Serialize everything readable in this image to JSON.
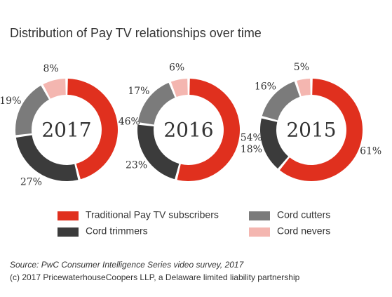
{
  "title": "Distribution of Pay TV relationships over time",
  "chart_data": [
    {
      "type": "donut",
      "center_label": "2017",
      "categories": [
        "Traditional Pay TV subscribers",
        "Cord trimmers",
        "Cord cutters",
        "Cord nevers"
      ],
      "colors": [
        "#e0301e",
        "#3b3b3b",
        "#7b7b7b",
        "#f4b6b0"
      ],
      "values": [
        46,
        27,
        19,
        8
      ],
      "value_labels": [
        "46%",
        "27%",
        "19%",
        "8%"
      ]
    },
    {
      "type": "donut",
      "center_label": "2016",
      "categories": [
        "Traditional Pay TV subscribers",
        "Cord trimmers",
        "Cord cutters",
        "Cord nevers"
      ],
      "colors": [
        "#e0301e",
        "#3b3b3b",
        "#7b7b7b",
        "#f4b6b0"
      ],
      "values": [
        54,
        23,
        17,
        6
      ],
      "value_labels": [
        "54%",
        "23%",
        "17%",
        "6%"
      ]
    },
    {
      "type": "donut",
      "center_label": "2015",
      "categories": [
        "Traditional Pay TV subscribers",
        "Cord trimmers",
        "Cord cutters",
        "Cord nevers"
      ],
      "colors": [
        "#e0301e",
        "#3b3b3b",
        "#7b7b7b",
        "#f4b6b0"
      ],
      "values": [
        61,
        18,
        16,
        5
      ],
      "value_labels": [
        "61%",
        "18%",
        "16%",
        "5%"
      ]
    }
  ],
  "source": "Source: PwC Consumer Intelligence Series video survey, 2017",
  "copyright": "(c) 2017 PricewaterhouseCoopers LLP, a Delaware limited liability partnership"
}
